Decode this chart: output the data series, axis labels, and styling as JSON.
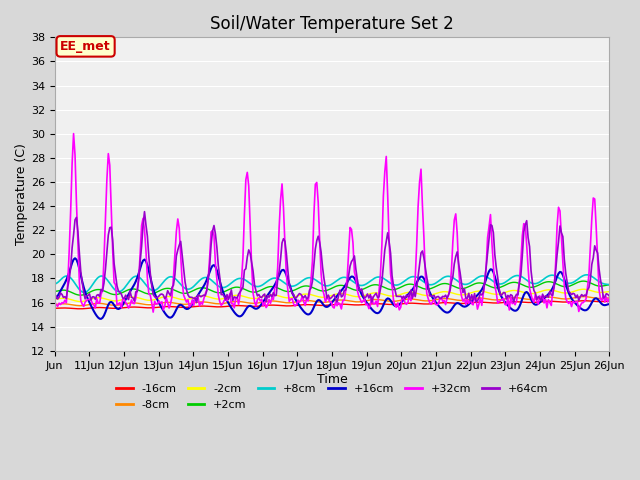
{
  "title": "Soil/Water Temperature Set 2",
  "xlabel": "Time",
  "ylabel": "Temperature (C)",
  "ylim": [
    12,
    38
  ],
  "yticks": [
    12,
    14,
    16,
    18,
    20,
    22,
    24,
    26,
    28,
    30,
    32,
    34,
    36,
    38
  ],
  "series_colors": {
    "-16cm": "#ff0000",
    "-8cm": "#ff8800",
    "-2cm": "#ffff00",
    "+2cm": "#00cc00",
    "+8cm": "#00cccc",
    "+16cm": "#0000cc",
    "+32cm": "#ff00ff",
    "+64cm": "#9900cc"
  },
  "background_color": "#e8e8e8",
  "plot_bg": "#f0f0f0",
  "annotation_text": "EE_met",
  "annotation_bg": "#ffffcc",
  "annotation_border": "#cc0000"
}
